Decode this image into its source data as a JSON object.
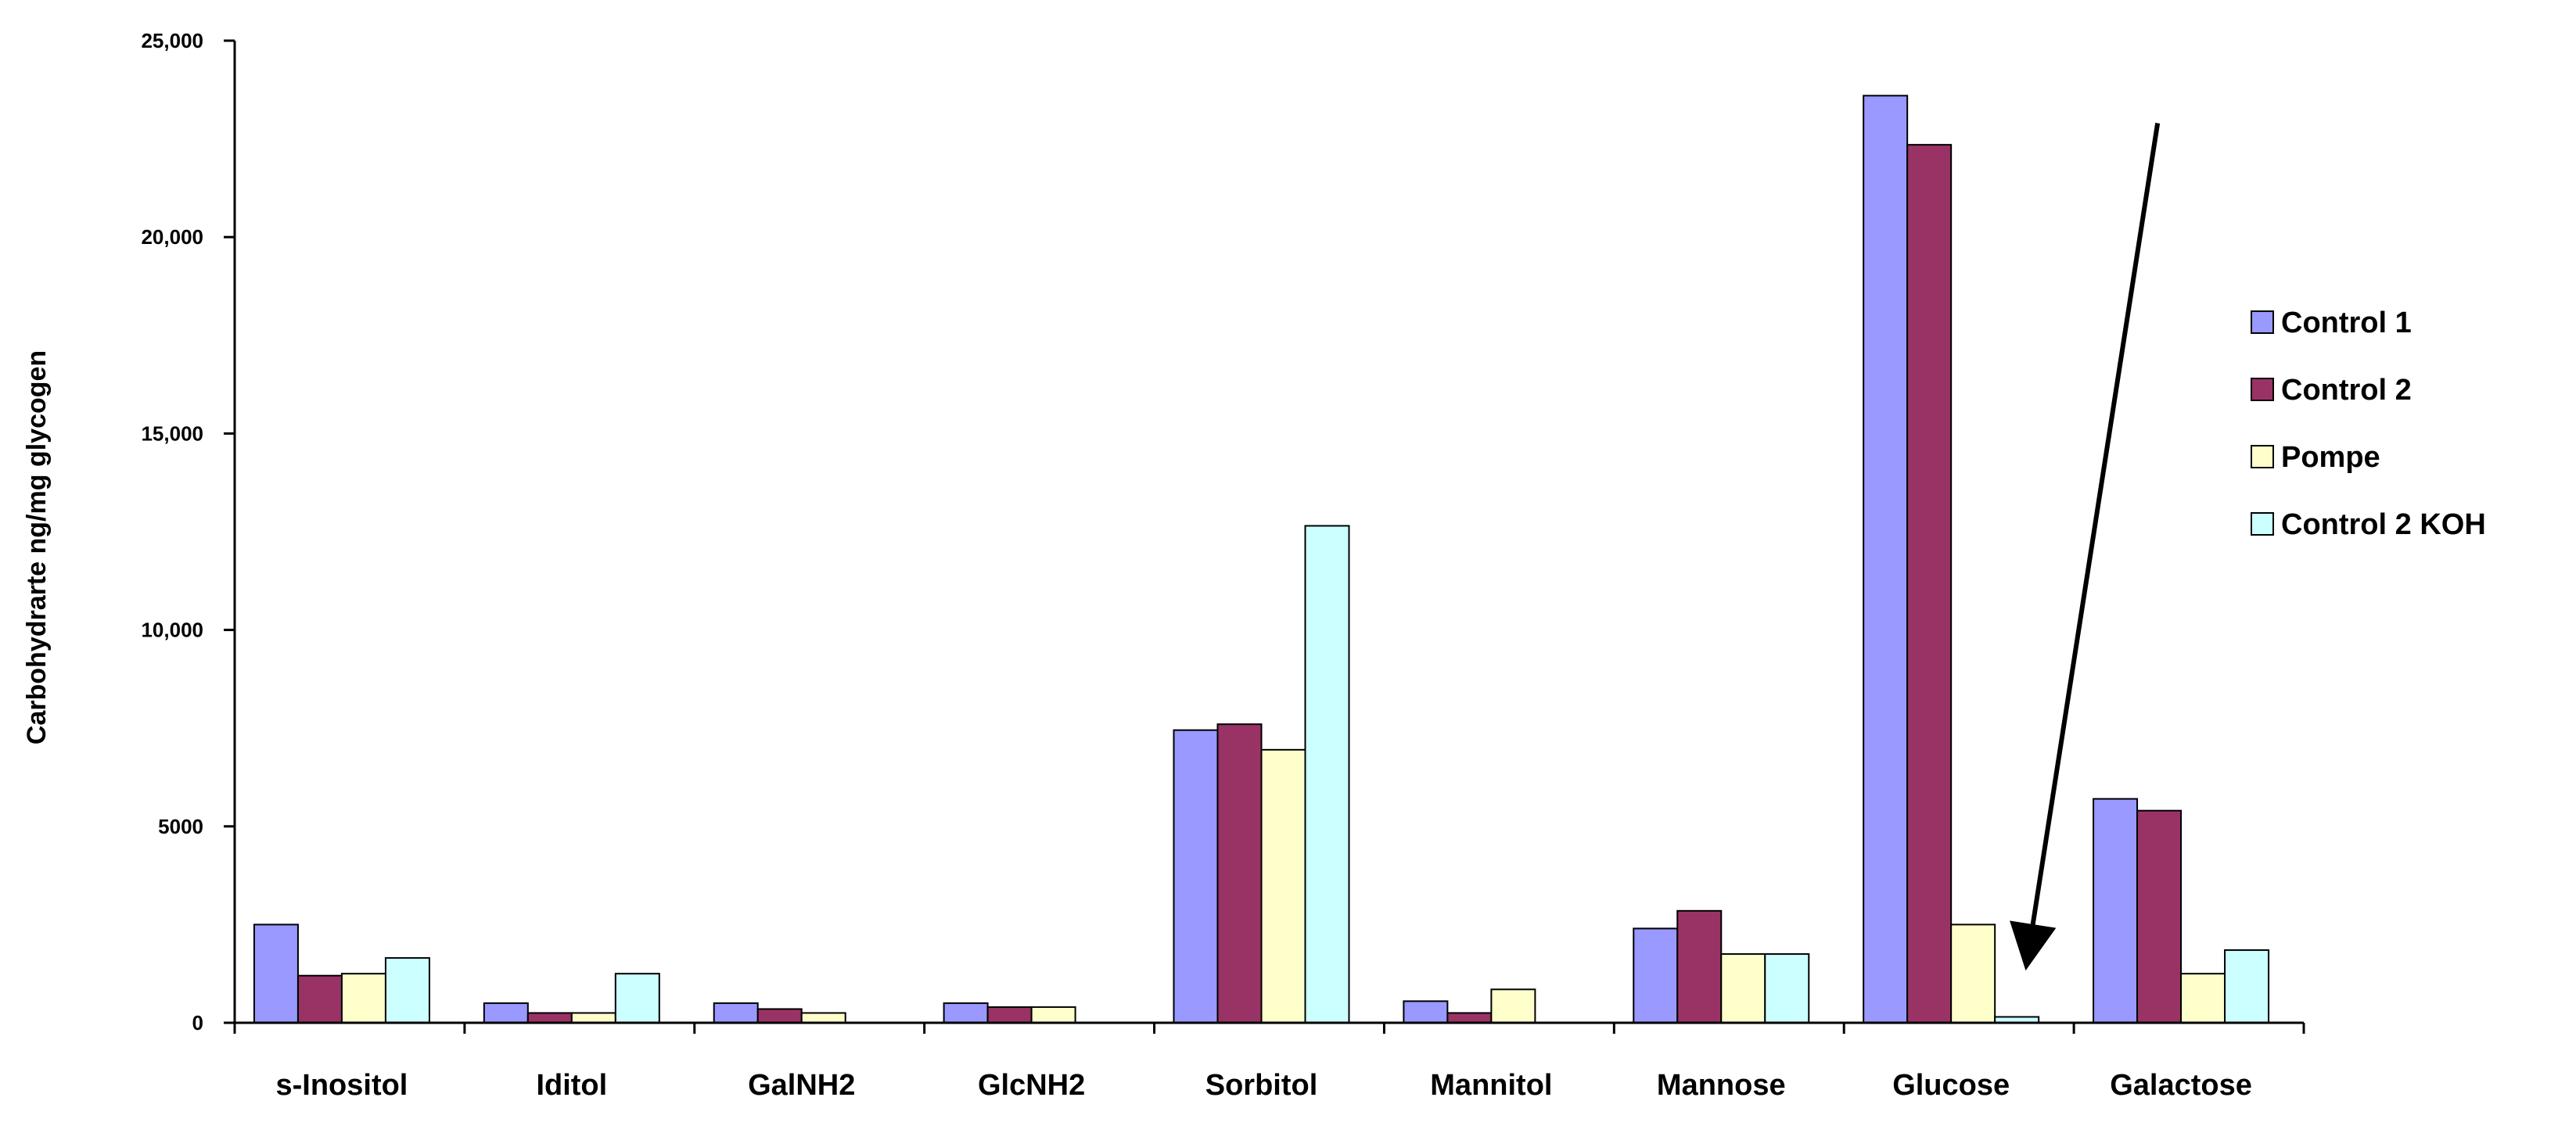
{
  "chart_data": {
    "type": "bar",
    "title": "",
    "xlabel": "",
    "ylabel": "Carbohydrarte ng/mg glycogen",
    "ylim": [
      0,
      25000
    ],
    "yticks": [
      0,
      5000,
      10000,
      15000,
      20000,
      25000
    ],
    "ytick_labels": [
      "0",
      "5000",
      "10,000",
      "15,000",
      "20,000",
      "25,000"
    ],
    "grid": false,
    "legend_position": "right",
    "categories": [
      "s-Inositol",
      "Iditol",
      "GalNH2",
      "GlcNH2",
      "Sorbitol",
      "Mannitol",
      "Mannose",
      "Glucose",
      "Galactose"
    ],
    "series": [
      {
        "name": "Control 1",
        "color": "#9999ff",
        "values": [
          2500,
          500,
          500,
          500,
          7450,
          550,
          2400,
          23600,
          5700
        ]
      },
      {
        "name": "Control 2",
        "color": "#993366",
        "values": [
          1200,
          250,
          350,
          400,
          7600,
          250,
          2850,
          22350,
          5400
        ]
      },
      {
        "name": "Pompe",
        "color": "#ffffcc",
        "values": [
          1250,
          250,
          250,
          400,
          6950,
          850,
          1750,
          2500,
          1250
        ]
      },
      {
        "name": "Control 2 KOH",
        "color": "#ccffff",
        "values": [
          1650,
          1250,
          0,
          0,
          12650,
          0,
          1750,
          150,
          1850
        ]
      }
    ],
    "annotations": [
      {
        "type": "arrow",
        "description": "arrow pointing to Control 2 KOH Glucose bar"
      }
    ]
  }
}
